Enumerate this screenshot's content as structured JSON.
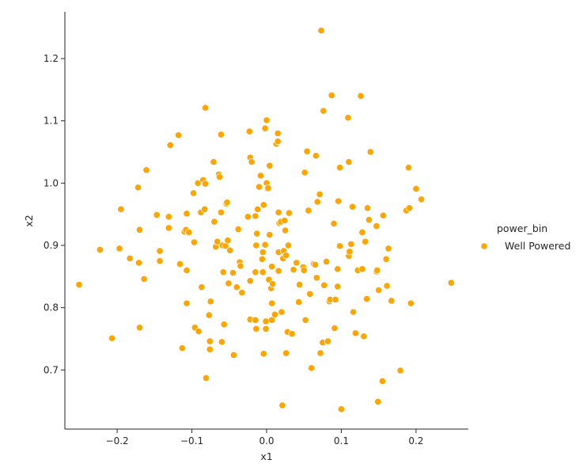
{
  "chart_data": {
    "type": "scatter",
    "xlabel": "x1",
    "ylabel": "x2",
    "xlim": [
      -0.27,
      0.27
    ],
    "ylim": [
      0.605,
      1.275
    ],
    "x_ticks": [
      -0.2,
      -0.1,
      0.0,
      0.1,
      0.2
    ],
    "x_tick_labels": [
      "−0.2",
      "−0.1",
      "0.0",
      "0.1",
      "0.2"
    ],
    "y_ticks": [
      0.7,
      0.8,
      0.9,
      1.0,
      1.1,
      1.2
    ],
    "y_tick_labels": [
      "0.7",
      "0.8",
      "0.9",
      "1.0",
      "1.1",
      "1.2"
    ],
    "grid": false,
    "legend": {
      "title": "power_bin",
      "placement": "right",
      "entries": [
        {
          "label": "Well Powered",
          "color": "#ffa500"
        }
      ]
    },
    "series": [
      {
        "name": "Well Powered",
        "color": "#ffa500",
        "points": [
          [
            -0.251,
            0.837
          ],
          [
            -0.223,
            0.893
          ],
          [
            -0.207,
            0.751
          ],
          [
            -0.197,
            0.895
          ],
          [
            -0.195,
            0.958
          ],
          [
            -0.183,
            0.879
          ],
          [
            -0.172,
            0.993
          ],
          [
            -0.171,
            0.872
          ],
          [
            -0.17,
            0.925
          ],
          [
            -0.17,
            0.768
          ],
          [
            -0.164,
            0.846
          ],
          [
            -0.161,
            1.021
          ],
          [
            -0.147,
            0.949
          ],
          [
            -0.143,
            0.891
          ],
          [
            -0.143,
            0.875
          ],
          [
            -0.131,
            0.946
          ],
          [
            -0.131,
            0.928
          ],
          [
            -0.129,
            1.061
          ],
          [
            -0.118,
            1.077
          ],
          [
            -0.116,
            0.87
          ],
          [
            -0.113,
            0.735
          ],
          [
            -0.11,
            0.922
          ],
          [
            -0.108,
            0.925
          ],
          [
            -0.107,
            0.951
          ],
          [
            -0.107,
            0.86
          ],
          [
            -0.107,
            0.807
          ],
          [
            -0.104,
            0.921
          ],
          [
            -0.098,
            0.984
          ],
          [
            -0.097,
            0.905
          ],
          [
            -0.096,
            0.768
          ],
          [
            -0.092,
            1.0
          ],
          [
            -0.091,
            0.762
          ],
          [
            -0.088,
            0.953
          ],
          [
            -0.087,
            0.833
          ],
          [
            -0.085,
            1.005
          ],
          [
            -0.083,
            0.958
          ],
          [
            -0.082,
            1.121
          ],
          [
            -0.082,
            0.999
          ],
          [
            -0.081,
            0.687
          ],
          [
            -0.077,
            0.788
          ],
          [
            -0.076,
            0.746
          ],
          [
            -0.076,
            0.733
          ],
          [
            -0.075,
            0.81
          ],
          [
            -0.071,
            1.034
          ],
          [
            -0.07,
            0.938
          ],
          [
            -0.068,
            0.898
          ],
          [
            -0.066,
            0.906
          ],
          [
            -0.064,
            1.014
          ],
          [
            -0.063,
            1.01
          ],
          [
            -0.061,
            1.078
          ],
          [
            -0.061,
            0.953
          ],
          [
            -0.06,
            0.745
          ],
          [
            -0.059,
            0.9
          ],
          [
            -0.058,
            0.857
          ],
          [
            -0.057,
            0.773
          ],
          [
            -0.055,
            0.899
          ],
          [
            -0.054,
            0.967
          ],
          [
            -0.053,
            0.969
          ],
          [
            -0.052,
            0.908
          ],
          [
            -0.051,
            0.839
          ],
          [
            -0.049,
            0.892
          ],
          [
            -0.045,
            0.856
          ],
          [
            -0.044,
            0.724
          ],
          [
            -0.04,
            0.833
          ],
          [
            -0.038,
            0.926
          ],
          [
            -0.036,
            0.873
          ],
          [
            -0.035,
            0.867
          ],
          [
            -0.033,
            0.824
          ],
          [
            -0.025,
            0.946
          ],
          [
            -0.023,
            1.083
          ],
          [
            -0.022,
            0.843
          ],
          [
            -0.022,
            0.781
          ],
          [
            -0.022,
            1.041
          ],
          [
            -0.02,
            1.034
          ],
          [
            -0.015,
            0.947
          ],
          [
            -0.015,
            0.857
          ],
          [
            -0.015,
            0.78
          ],
          [
            -0.014,
            0.766
          ],
          [
            -0.014,
            0.9
          ],
          [
            -0.013,
            0.919
          ],
          [
            -0.012,
            0.958
          ],
          [
            -0.01,
            0.994
          ],
          [
            -0.008,
            1.012
          ],
          [
            -0.006,
            0.878
          ],
          [
            -0.005,
            0.889
          ],
          [
            -0.005,
            0.857
          ],
          [
            -0.004,
            0.965
          ],
          [
            -0.004,
            0.726
          ],
          [
            -0.002,
            1.088
          ],
          [
            -0.002,
            0.901
          ],
          [
            -0.001,
            0.766
          ],
          [
            -0.001,
            0.778
          ],
          [
            0.0,
            1.101
          ],
          [
            0.0,
            1.0
          ],
          [
            0.001,
            0.991
          ],
          [
            0.002,
            0.992
          ],
          [
            0.003,
            0.845
          ],
          [
            0.004,
            1.028
          ],
          [
            0.004,
            0.917
          ],
          [
            0.006,
            0.831
          ],
          [
            0.007,
            0.866
          ],
          [
            0.007,
            0.807
          ],
          [
            0.007,
            0.78
          ],
          [
            0.008,
            0.838
          ],
          [
            0.011,
            0.789
          ],
          [
            0.013,
            1.063
          ],
          [
            0.015,
            1.067
          ],
          [
            0.015,
            1.08
          ],
          [
            0.016,
            0.953
          ],
          [
            0.016,
            0.889
          ],
          [
            0.016,
            0.859
          ],
          [
            0.017,
            0.936
          ],
          [
            0.019,
            0.938
          ],
          [
            0.02,
            0.793
          ],
          [
            0.021,
            0.643
          ],
          [
            0.022,
            0.879
          ],
          [
            0.023,
            0.891
          ],
          [
            0.024,
            0.94
          ],
          [
            0.025,
            0.924
          ],
          [
            0.026,
            0.727
          ],
          [
            0.026,
            0.884
          ],
          [
            0.028,
            0.761
          ],
          [
            0.029,
            0.9
          ],
          [
            0.03,
            0.952
          ],
          [
            0.034,
            0.758
          ],
          [
            0.036,
            0.861
          ],
          [
            0.04,
            0.872
          ],
          [
            0.043,
            0.809
          ],
          [
            0.044,
            0.837
          ],
          [
            0.049,
            0.865
          ],
          [
            0.05,
            0.86
          ],
          [
            0.051,
            1.017
          ],
          [
            0.052,
            0.78
          ],
          [
            0.054,
            1.051
          ],
          [
            0.056,
            0.956
          ],
          [
            0.058,
            0.822
          ],
          [
            0.06,
            0.703
          ],
          [
            0.063,
            0.87
          ],
          [
            0.065,
            0.869
          ],
          [
            0.066,
            1.044
          ],
          [
            0.067,
            0.848
          ],
          [
            0.068,
            0.97
          ],
          [
            0.071,
            0.982
          ],
          [
            0.072,
            0.727
          ],
          [
            0.073,
            1.245
          ],
          [
            0.075,
            0.744
          ],
          [
            0.076,
            1.116
          ],
          [
            0.077,
            0.836
          ],
          [
            0.08,
            0.874
          ],
          [
            0.082,
            0.746
          ],
          [
            0.084,
            0.81
          ],
          [
            0.085,
            0.813
          ],
          [
            0.087,
            1.141
          ],
          [
            0.09,
            0.935
          ],
          [
            0.091,
            0.767
          ],
          [
            0.092,
            0.813
          ],
          [
            0.095,
            0.834
          ],
          [
            0.095,
            0.862
          ],
          [
            0.096,
            0.971
          ],
          [
            0.098,
            1.025
          ],
          [
            0.098,
            0.899
          ],
          [
            0.1,
            0.637
          ],
          [
            0.109,
            1.105
          ],
          [
            0.11,
            1.034
          ],
          [
            0.11,
            0.883
          ],
          [
            0.111,
            0.89
          ],
          [
            0.113,
            0.902
          ],
          [
            0.115,
            0.962
          ],
          [
            0.116,
            0.793
          ],
          [
            0.119,
            0.759
          ],
          [
            0.122,
            0.86
          ],
          [
            0.126,
            1.14
          ],
          [
            0.128,
            0.862
          ],
          [
            0.128,
            0.921
          ],
          [
            0.13,
            0.754
          ],
          [
            0.132,
            0.906
          ],
          [
            0.134,
            0.814
          ],
          [
            0.135,
            0.96
          ],
          [
            0.137,
            0.941
          ],
          [
            0.139,
            1.05
          ],
          [
            0.147,
            0.931
          ],
          [
            0.147,
            0.858
          ],
          [
            0.148,
            0.86
          ],
          [
            0.149,
            0.649
          ],
          [
            0.15,
            0.828
          ],
          [
            0.155,
            0.682
          ],
          [
            0.156,
            0.948
          ],
          [
            0.16,
            0.878
          ],
          [
            0.161,
            0.835
          ],
          [
            0.163,
            0.895
          ],
          [
            0.167,
            0.811
          ],
          [
            0.179,
            0.699
          ],
          [
            0.187,
            0.956
          ],
          [
            0.19,
            1.025
          ],
          [
            0.191,
            0.96
          ],
          [
            0.193,
            0.807
          ],
          [
            0.2,
            0.991
          ],
          [
            0.207,
            0.974
          ],
          [
            0.247,
            0.84
          ]
        ]
      }
    ]
  }
}
